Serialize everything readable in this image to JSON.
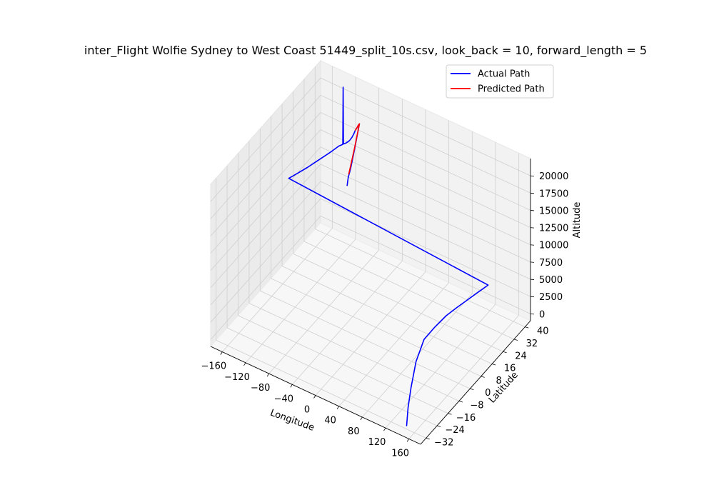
{
  "chart_data": {
    "type": "line",
    "projection": "3d",
    "title": "inter_Flight Wolfie Sydney to West Coast 51449_split_10s.csv, look_back = 10, forward_length = 5",
    "xlabel": "Longitude",
    "ylabel": "Latitude",
    "zlabel": "Altitude",
    "xlim": [
      -180,
      180
    ],
    "ylim": [
      -36,
      44
    ],
    "zlim": [
      -1000,
      22500
    ],
    "x_ticks": [
      -160,
      -120,
      -80,
      -40,
      0,
      40,
      80,
      120,
      160
    ],
    "y_ticks": [
      -32,
      -24,
      -16,
      -8,
      0,
      8,
      16,
      24,
      32,
      40
    ],
    "z_ticks": [
      0,
      2500,
      5000,
      7500,
      10000,
      12500,
      15000,
      17500,
      20000
    ],
    "x_tick_labels": [
      "−160",
      "−120",
      "−80",
      "−40",
      "0",
      "40",
      "80",
      "120",
      "160"
    ],
    "y_tick_labels": [
      "−32",
      "−24",
      "−16",
      "−8",
      "0",
      "8",
      "16",
      "24",
      "32",
      "40"
    ],
    "z_tick_labels": [
      "0",
      "2500",
      "5000",
      "7500",
      "10000",
      "12500",
      "15000",
      "17500",
      "20000"
    ],
    "grid": true,
    "legend_position": "top-right",
    "series": [
      {
        "name": "Actual Path",
        "color": "#0000ff",
        "points": [
          [
            151.2,
            -33.9,
            100
          ],
          [
            151.5,
            -33.0,
            2500
          ],
          [
            151.9,
            -31.0,
            5000
          ],
          [
            152.3,
            -27.5,
            8000
          ],
          [
            153.0,
            -22.0,
            10000
          ],
          [
            155.0,
            -15.0,
            10300
          ],
          [
            158.0,
            -8.0,
            10500
          ],
          [
            163.0,
            -2.0,
            10600
          ],
          [
            168.0,
            3.0,
            10700
          ],
          [
            173.0,
            8.0,
            10800
          ],
          [
            178.0,
            14.0,
            10800
          ],
          [
            -178.0,
            20.0,
            10900
          ],
          [
            -172.0,
            24.0,
            11000
          ],
          [
            -165.0,
            28.0,
            11200
          ],
          [
            -160.0,
            31.0,
            11400
          ],
          [
            -155.0,
            34.0,
            11600
          ],
          [
            -149.0,
            38.0,
            11800
          ],
          [
            -144.0,
            42.0,
            12000
          ],
          [
            -139.5,
            43.0,
            12200
          ],
          [
            -139.0,
            43.0,
            20500
          ],
          [
            -138.5,
            43.0,
            12300
          ],
          [
            -134.0,
            43.0,
            12600
          ],
          [
            -128.0,
            43.0,
            13200
          ],
          [
            -124.0,
            43.0,
            13800
          ],
          [
            -121.0,
            43.0,
            14400
          ],
          [
            -118.0,
            43.0,
            15100
          ],
          [
            -115.0,
            43.0,
            15600
          ],
          [
            -113.0,
            43.0,
            16000
          ],
          [
            -111.0,
            43.0,
            16300
          ],
          [
            -110.0,
            39.0,
            13500
          ],
          [
            -109.5,
            36.0,
            11500
          ],
          [
            -109.0,
            34.0,
            10600
          ],
          [
            -108.5,
            33.0,
            9700
          ]
        ]
      },
      {
        "name": "Predicted Path",
        "color": "#ff0000",
        "points": [
          [
            -118.0,
            43.0,
            15100
          ],
          [
            -115.0,
            43.0,
            15600
          ],
          [
            -113.0,
            43.0,
            16000
          ],
          [
            -111.0,
            43.0,
            16300
          ],
          [
            -110.0,
            39.0,
            13700
          ],
          [
            -109.5,
            36.0,
            11900
          ],
          [
            -109.3,
            34.5,
            11000
          ]
        ]
      }
    ]
  }
}
